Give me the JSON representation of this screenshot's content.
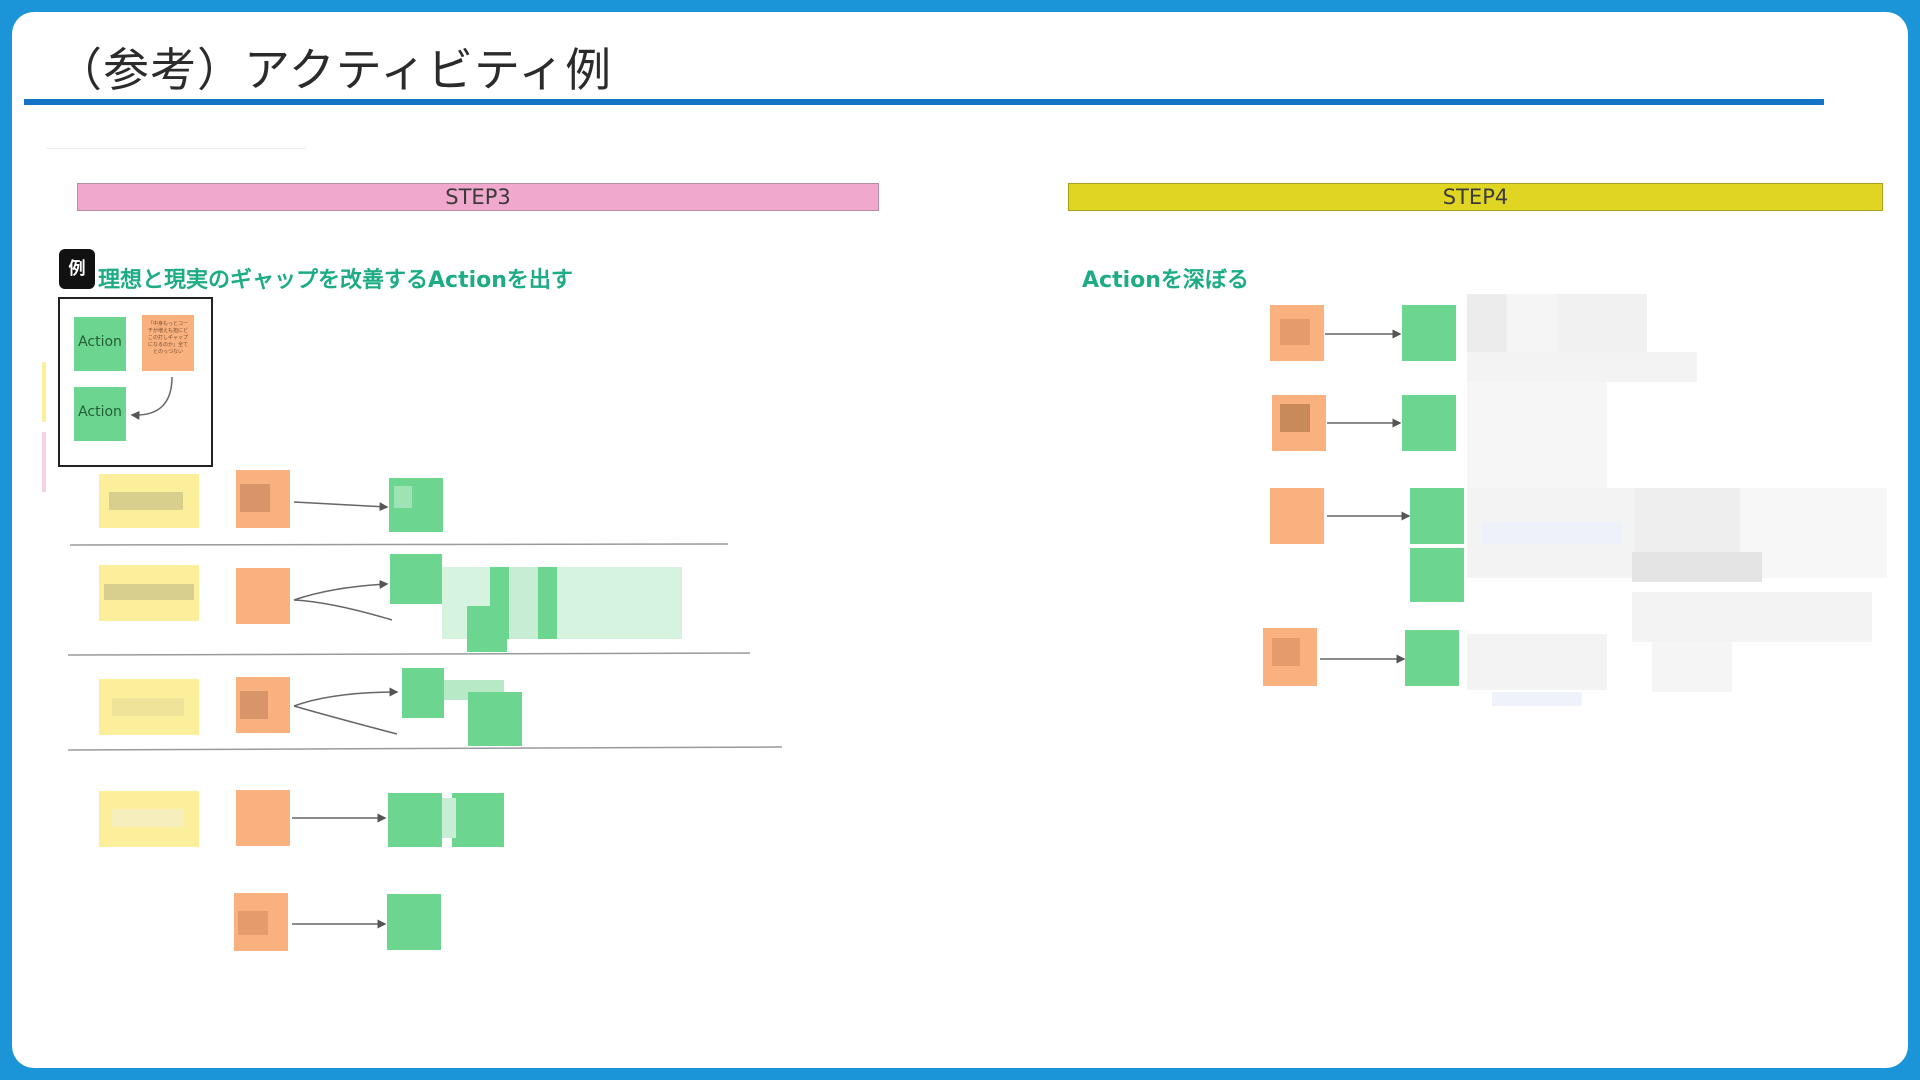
{
  "slide": {
    "title": "（参考）アクティビティ例",
    "accent_color": "#1573c5",
    "frame_color": "#1c94d8"
  },
  "step3": {
    "label": "STEP3",
    "band_color": "#f0a8cc",
    "heading": "理想と現実のギャップを改善するActionを出す",
    "example_badge": "例",
    "example": {
      "action_label_1": "Action",
      "action_label_2": "Action",
      "note_text": "「中身もっとコーチが増えも担にどこの打しギャップになるのか」全てとのっつない"
    }
  },
  "step4": {
    "label": "STEP4",
    "band_color": "#e1d524",
    "heading": "Actionを深ぼる"
  },
  "colors": {
    "heading": "#1eac86",
    "sticky_green": "#6cd690",
    "sticky_orange": "#f8b17f",
    "sticky_yellow": "#fbef9b"
  }
}
